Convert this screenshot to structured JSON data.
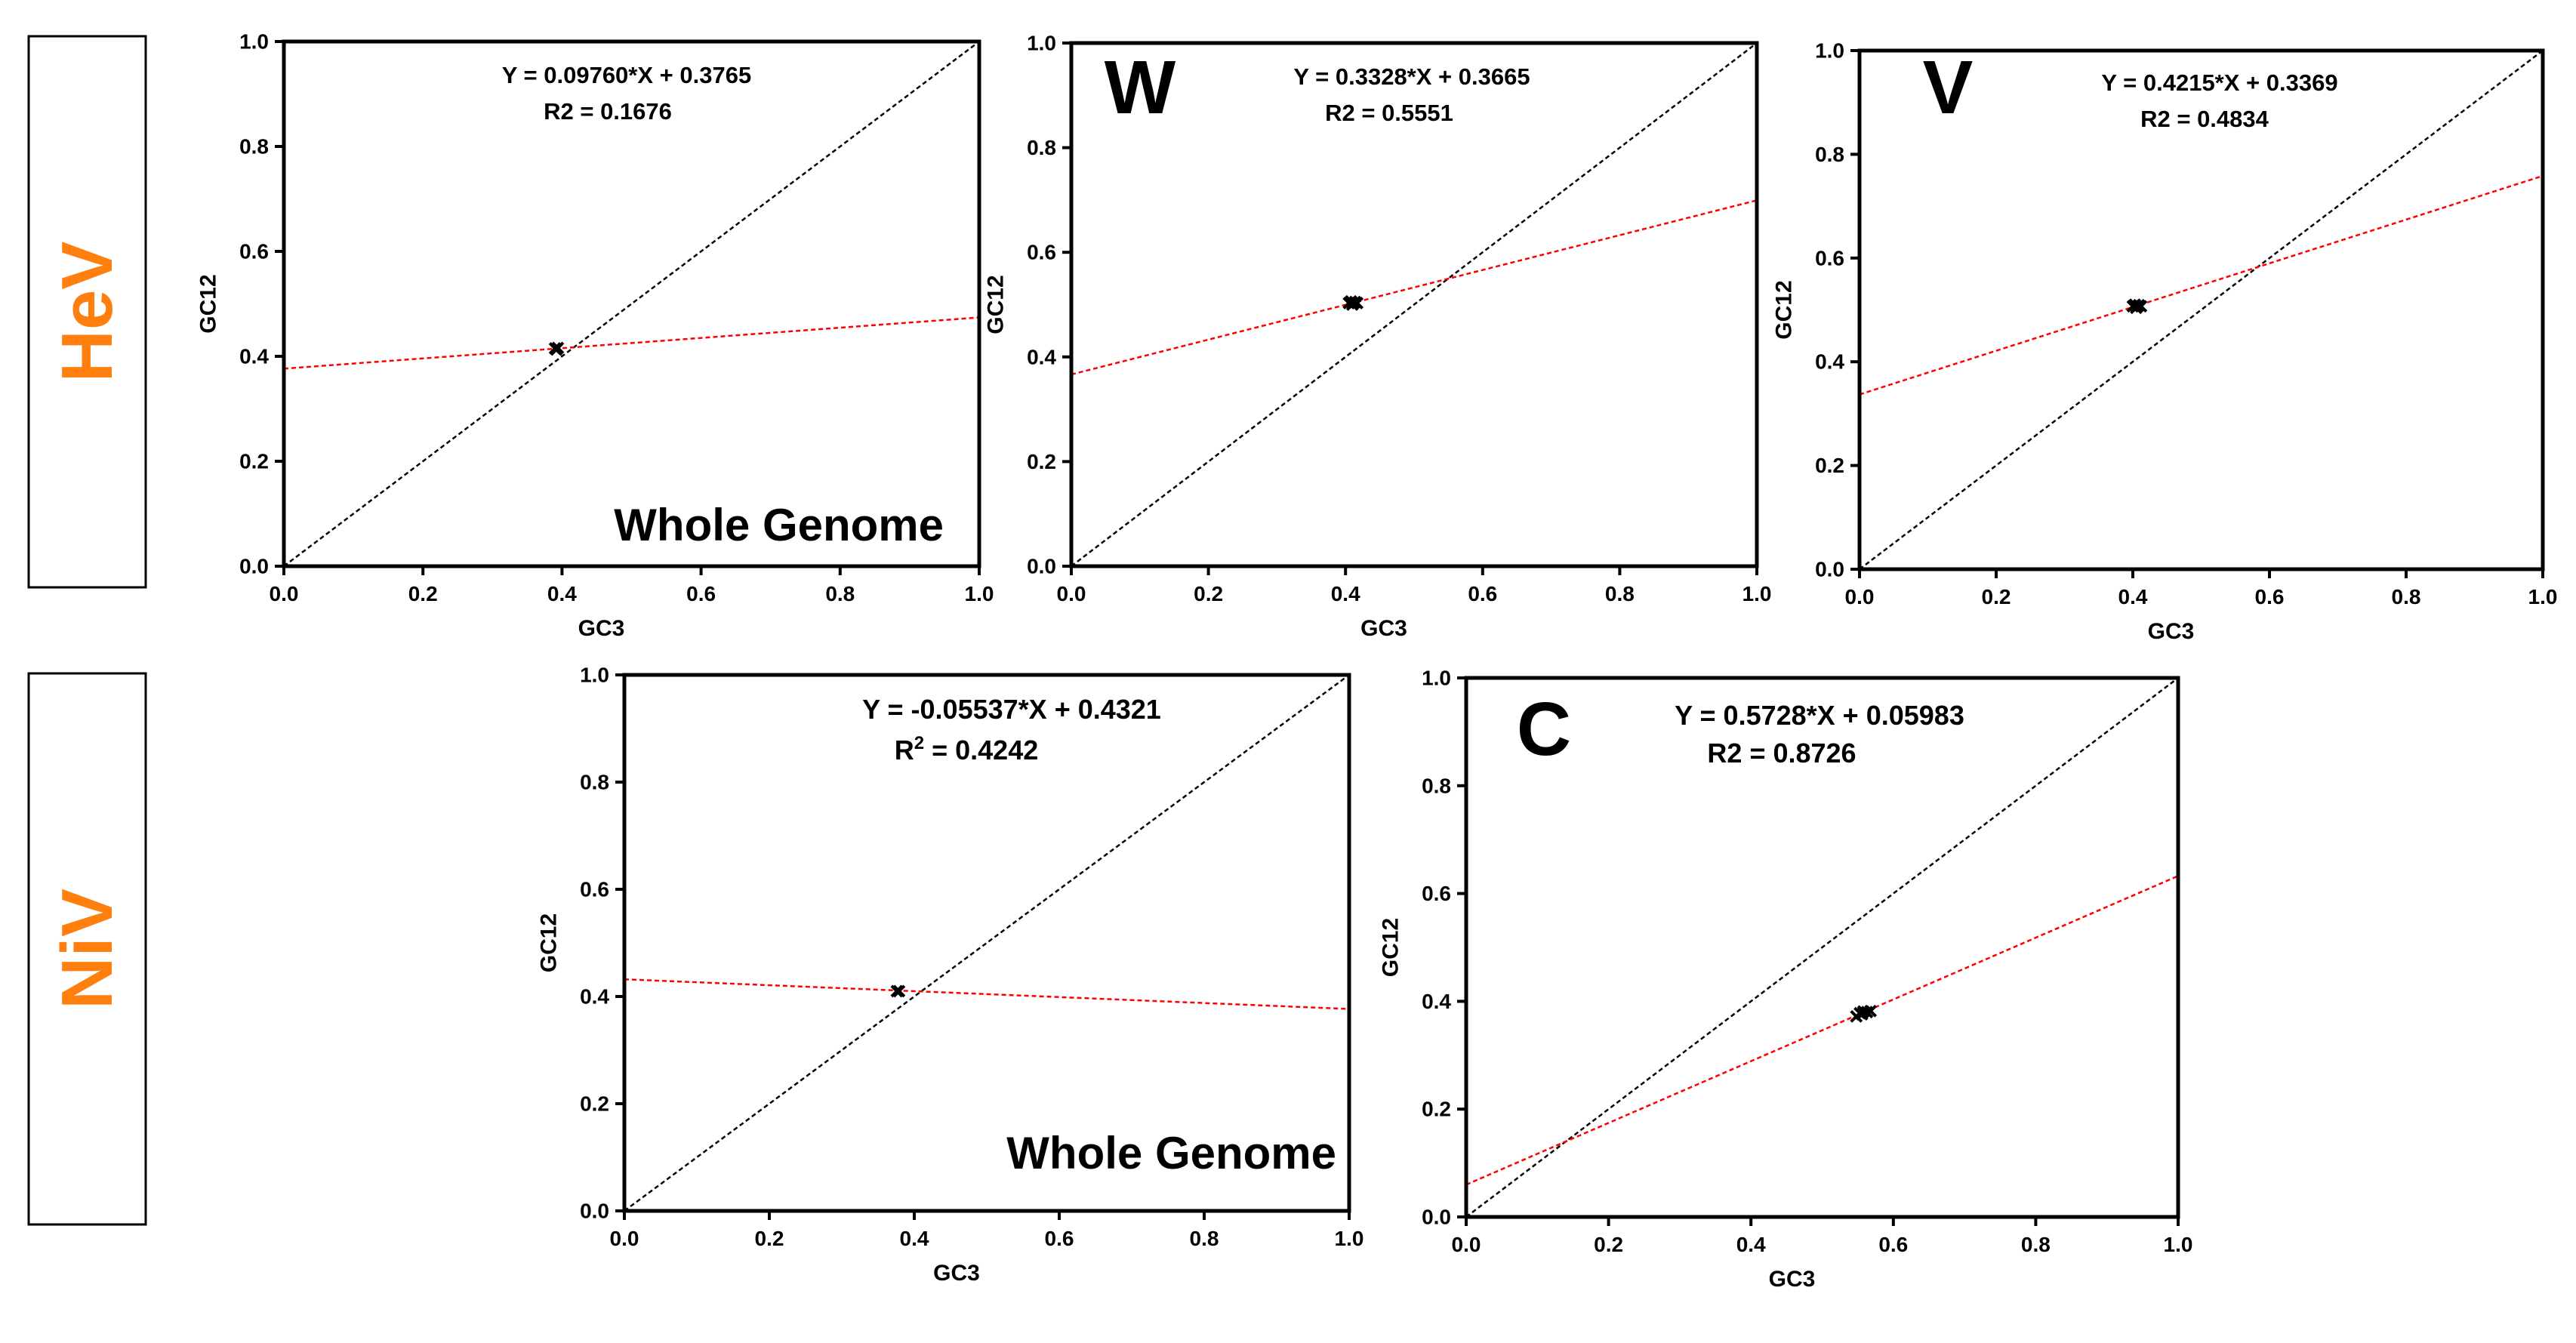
{
  "figure": {
    "row_labels": [
      {
        "text": "HeV",
        "color": "#FF7F0E"
      },
      {
        "text": "NiV",
        "color": "#FF7F0E"
      }
    ]
  },
  "chart_data": [
    {
      "type": "scatter",
      "row": "HeV",
      "panel_label": "",
      "footer_label": "Whole Genome",
      "xlabel": "GC3",
      "ylabel": "GC12",
      "xlim": [
        0,
        1
      ],
      "ylim": [
        0,
        1
      ],
      "xticks": [
        "0.0",
        "0.2",
        "0.4",
        "0.6",
        "0.8",
        "1.0"
      ],
      "yticks": [
        "0.0",
        "0.2",
        "0.4",
        "0.6",
        "0.8",
        "1.0"
      ],
      "equation": "Y = 0.09760*X + 0.3765",
      "r2_prefix": "R2",
      "r2_sup": "",
      "r2_value": " = 0.1676",
      "regression": {
        "slope": 0.0976,
        "intercept": 0.3765
      },
      "points": [
        [
          0.39,
          0.415
        ],
        [
          0.392,
          0.413
        ],
        [
          0.394,
          0.416
        ]
      ],
      "series": [
        {
          "name": "Regression line",
          "color": "#FF0000"
        },
        {
          "name": "Diagonal y = x",
          "color": "#000000"
        }
      ]
    },
    {
      "type": "scatter",
      "row": "HeV",
      "panel_label": "W",
      "footer_label": "",
      "xlabel": "GC3",
      "ylabel": "GC12",
      "xlim": [
        0,
        1
      ],
      "ylim": [
        0,
        1
      ],
      "xticks": [
        "0.0",
        "0.2",
        "0.4",
        "0.6",
        "0.8",
        "1.0"
      ],
      "yticks": [
        "0.0",
        "0.2",
        "0.4",
        "0.6",
        "0.8",
        "1.0"
      ],
      "equation": "Y = 0.3328*X + 0.3665",
      "r2_prefix": "R2",
      "r2_sup": "",
      "r2_value": " = 0.5551",
      "regression": {
        "slope": 0.3328,
        "intercept": 0.3665
      },
      "points": [
        [
          0.405,
          0.503
        ],
        [
          0.408,
          0.506
        ],
        [
          0.411,
          0.502
        ],
        [
          0.414,
          0.505
        ],
        [
          0.417,
          0.503
        ],
        [
          0.41,
          0.5
        ]
      ],
      "series": [
        {
          "name": "Regression line",
          "color": "#FF0000"
        },
        {
          "name": "Diagonal y = x",
          "color": "#000000"
        }
      ]
    },
    {
      "type": "scatter",
      "row": "HeV",
      "panel_label": "V",
      "footer_label": "",
      "xlabel": "GC3",
      "ylabel": "GC12",
      "xlim": [
        0,
        1
      ],
      "ylim": [
        0,
        1
      ],
      "xticks": [
        "0.0",
        "0.2",
        "0.4",
        "0.6",
        "0.8",
        "1.0"
      ],
      "yticks": [
        "0.0",
        "0.2",
        "0.4",
        "0.6",
        "0.8",
        "1.0"
      ],
      "equation": "Y = 0.4215*X + 0.3369",
      "r2_prefix": "R2",
      "r2_sup": "",
      "r2_value": " = 0.4834",
      "regression": {
        "slope": 0.4215,
        "intercept": 0.3369
      },
      "points": [
        [
          0.4,
          0.507
        ],
        [
          0.403,
          0.51
        ],
        [
          0.406,
          0.506
        ],
        [
          0.409,
          0.509
        ],
        [
          0.412,
          0.507
        ],
        [
          0.405,
          0.504
        ]
      ],
      "series": [
        {
          "name": "Regression line",
          "color": "#FF0000"
        },
        {
          "name": "Diagonal y = x",
          "color": "#000000"
        }
      ]
    },
    {
      "type": "scatter",
      "row": "NiV",
      "panel_label": "",
      "footer_label": "Whole Genome",
      "xlabel": "GC3",
      "ylabel": "GC12",
      "xlim": [
        0,
        1
      ],
      "ylim": [
        0,
        1
      ],
      "xticks": [
        "0.0",
        "0.2",
        "0.4",
        "0.6",
        "0.8",
        "1.0"
      ],
      "yticks": [
        "0.0",
        "0.2",
        "0.4",
        "0.6",
        "0.8",
        "1.0"
      ],
      "equation": "Y = -0.05537*X + 0.4321",
      "r2_prefix": "R",
      "r2_sup": "2",
      "r2_value": " = 0.4242",
      "regression": {
        "slope": -0.05537,
        "intercept": 0.4321
      },
      "points": [
        [
          0.376,
          0.41
        ],
        [
          0.379,
          0.41
        ]
      ],
      "series": [
        {
          "name": "Regression line",
          "color": "#FF0000"
        },
        {
          "name": "Diagonal y = x",
          "color": "#000000"
        }
      ]
    },
    {
      "type": "scatter",
      "row": "NiV",
      "panel_label": "C",
      "footer_label": "",
      "xlabel": "GC3",
      "ylabel": "GC12",
      "xlim": [
        0,
        1
      ],
      "ylim": [
        0,
        1
      ],
      "xticks": [
        "0.0",
        "0.2",
        "0.4",
        "0.6",
        "0.8",
        "1.0"
      ],
      "yticks": [
        "0.0",
        "0.2",
        "0.4",
        "0.6",
        "0.8",
        "1.0"
      ],
      "equation": "Y = 0.5728*X + 0.05983",
      "r2_prefix": "R2",
      "r2_sup": "",
      "r2_value": " = 0.8726",
      "regression": {
        "slope": 0.5728,
        "intercept": 0.05983
      },
      "points": [
        [
          0.548,
          0.372
        ],
        [
          0.553,
          0.378
        ],
        [
          0.558,
          0.381
        ],
        [
          0.563,
          0.38
        ],
        [
          0.568,
          0.382
        ],
        [
          0.556,
          0.376
        ]
      ],
      "series": [
        {
          "name": "Regression line",
          "color": "#FF0000"
        },
        {
          "name": "Diagonal y = x",
          "color": "#000000"
        }
      ]
    }
  ]
}
